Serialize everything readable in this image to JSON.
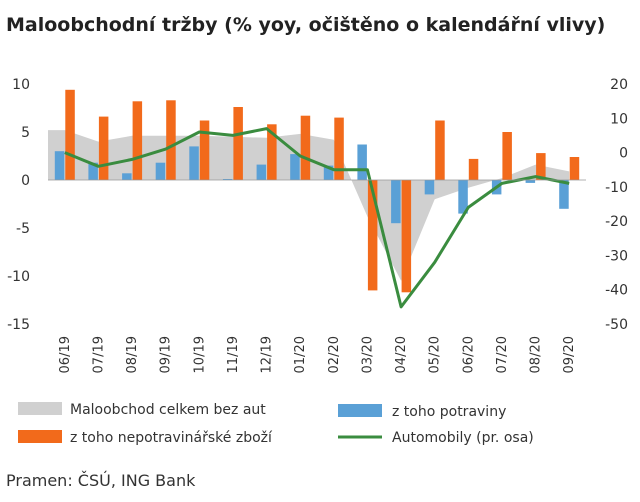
{
  "chart_data": {
    "type": "bar",
    "title": "Maloobchodní tržby (% yoy, očištěno o kalendářní vlivy)",
    "source": "Pramen: ČSÚ, ING Bank",
    "categories": [
      "06/19",
      "07/19",
      "08/19",
      "09/19",
      "10/19",
      "11/19",
      "12/19",
      "01/20",
      "02/20",
      "03/20",
      "04/20",
      "05/20",
      "06/20",
      "07/20",
      "08/20",
      "09/20"
    ],
    "y_left": {
      "ylim": [
        -15,
        10
      ],
      "ticks": [
        10,
        5,
        0,
        -5,
        -10,
        -15
      ]
    },
    "y_right": {
      "ylim": [
        -50,
        20
      ],
      "ticks": [
        20,
        10,
        0,
        -10,
        -20,
        -30,
        -40,
        -50
      ]
    },
    "series": [
      {
        "name": "Maloobchod celkem bez aut",
        "type": "area",
        "axis": "left",
        "color": "#d0d0d0",
        "values": [
          5.2,
          4.0,
          4.6,
          4.6,
          4.6,
          4.5,
          4.4,
          4.8,
          4.2,
          -3.8,
          -10.5,
          -2.0,
          -0.8,
          0.2,
          1.6,
          0.9
        ]
      },
      {
        "name": "z toho potraviny",
        "type": "bar",
        "axis": "left",
        "color": "#5aa0d6",
        "values": [
          3.0,
          1.8,
          0.7,
          1.8,
          3.5,
          0.1,
          1.6,
          2.7,
          1.5,
          3.7,
          -4.5,
          -1.5,
          -3.5,
          -1.5,
          -0.3,
          -3.0
        ]
      },
      {
        "name": "z toho nepotravinářské zboží",
        "type": "bar",
        "axis": "left",
        "color": "#f26a1b",
        "values": [
          9.4,
          6.6,
          8.2,
          8.3,
          6.2,
          7.6,
          5.8,
          6.7,
          6.5,
          -11.5,
          -11.7,
          6.2,
          2.2,
          5.0,
          2.8,
          2.4
        ]
      },
      {
        "name": "Automobily (pr. osa)",
        "type": "line",
        "axis": "right",
        "color": "#3a8c3f",
        "values": [
          0,
          -4,
          -2,
          1,
          6,
          5,
          7,
          -1,
          -5,
          -5,
          -45,
          -32,
          -16,
          -9,
          -7,
          -9
        ]
      }
    ],
    "grid": false,
    "legend_position": "bottom"
  }
}
